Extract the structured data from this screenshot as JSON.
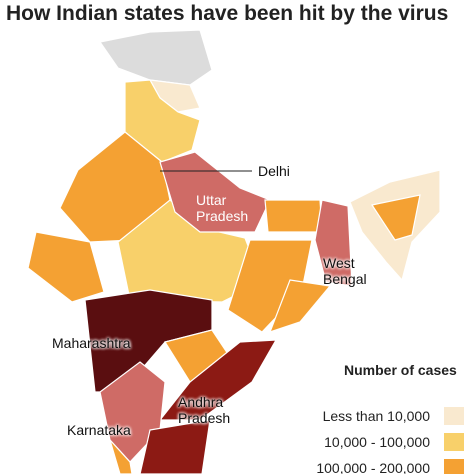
{
  "title": "How Indian states have been hit by the virus",
  "labels": [
    "Delhi",
    "Uttar Pradesh",
    "West Bengal",
    "Maharashtra",
    "Andhra Pradesh",
    "Karnataka"
  ],
  "legend": {
    "title": "Number of cases",
    "items": [
      {
        "label": "Less than 10,000",
        "color": "#f9e9cf"
      },
      {
        "label": "10,000 - 100,000",
        "color": "#f8d06a"
      },
      {
        "label": "100,000 - 200,000",
        "color": "#f4a133"
      }
    ]
  }
}
